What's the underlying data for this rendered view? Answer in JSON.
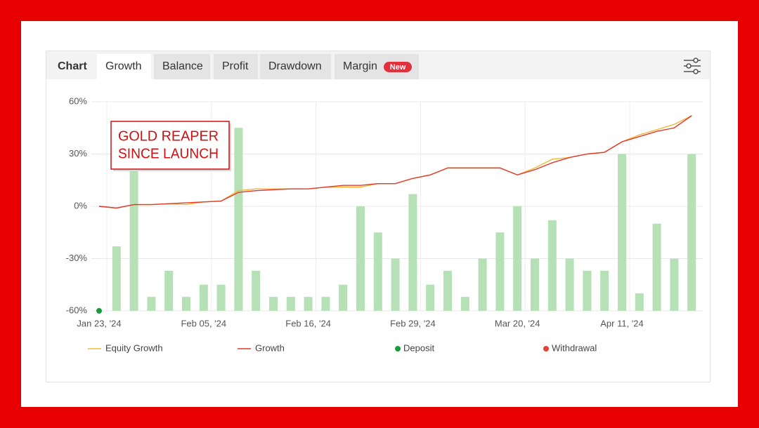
{
  "header": {
    "label": "Chart",
    "tabs": [
      "Growth",
      "Balance",
      "Profit",
      "Drawdown",
      "Margin"
    ],
    "badge": "New",
    "active_tab": 0
  },
  "chart_data": {
    "type": "line",
    "annotation": [
      "GOLD REAPER",
      "SINCE LAUNCH"
    ],
    "categories": [
      "Jan 23, '24",
      null,
      null,
      null,
      null,
      null,
      "Feb 05, '24",
      null,
      null,
      null,
      null,
      null,
      "Feb 16, '24",
      null,
      null,
      null,
      null,
      null,
      "Feb 29, '24",
      null,
      null,
      null,
      null,
      null,
      "Mar 20, '24",
      null,
      null,
      null,
      null,
      null,
      "Apr 11, '24",
      null,
      null,
      null,
      null
    ],
    "ylim": [
      -60,
      60
    ],
    "yticks": [
      {
        "value": -60,
        "label": "-60%"
      },
      {
        "value": -30,
        "label": "-30%"
      },
      {
        "value": 0,
        "label": "0%"
      },
      {
        "value": 30,
        "label": "30%"
      },
      {
        "value": 60,
        "label": "60%"
      }
    ],
    "grid": true,
    "bars": {
      "color": "#b6e0b6",
      "values": [
        null,
        -23,
        22,
        -52,
        -37,
        -52,
        -45,
        -45,
        45,
        -37,
        -52,
        -52,
        -52,
        -52,
        -45,
        0,
        -15,
        -30,
        7,
        -45,
        -37,
        -52,
        -30,
        -15,
        0,
        -30,
        -8,
        -30,
        -37,
        -37,
        30,
        -50,
        -10,
        -30,
        30
      ]
    },
    "series": [
      {
        "name": "Equity Growth",
        "type": "line",
        "color": "#f5b731",
        "values": [
          0,
          -1,
          1,
          1,
          1.5,
          1,
          2.5,
          3,
          9,
          10,
          10,
          10,
          10,
          11,
          11,
          11,
          13,
          13,
          16,
          18,
          22,
          22,
          22,
          22,
          18,
          22,
          27,
          28,
          30,
          31,
          37,
          41,
          44,
          47,
          52
        ]
      },
      {
        "name": "Growth",
        "type": "line",
        "color": "#e03a2f",
        "values": [
          0,
          -1,
          1,
          1,
          1.5,
          2,
          2.5,
          3,
          8,
          9,
          9.5,
          10,
          10,
          11,
          12,
          12,
          13,
          13,
          16,
          18,
          22,
          22,
          22,
          22,
          18,
          21,
          25,
          28,
          30,
          31,
          37,
          40,
          43,
          45,
          52
        ]
      },
      {
        "name": "Deposit",
        "type": "scatter",
        "color": "#1a9c3e",
        "values": [
          -60,
          null,
          null,
          null,
          null,
          null,
          null,
          null,
          null,
          null,
          null,
          null,
          null,
          null,
          null,
          null,
          null,
          null,
          null,
          null,
          null,
          null,
          null,
          null,
          null,
          null,
          null,
          null,
          null,
          null,
          null,
          null,
          null,
          null,
          null
        ]
      },
      {
        "name": "Withdrawal",
        "type": "scatter",
        "color": "#e0453a",
        "values": [
          null,
          null,
          null,
          null,
          null,
          null,
          null,
          null,
          null,
          null,
          null,
          null,
          null,
          null,
          null,
          null,
          null,
          null,
          null,
          null,
          null,
          null,
          null,
          null,
          null,
          null,
          null,
          null,
          null,
          null,
          null,
          null,
          null,
          null,
          null
        ]
      }
    ]
  }
}
